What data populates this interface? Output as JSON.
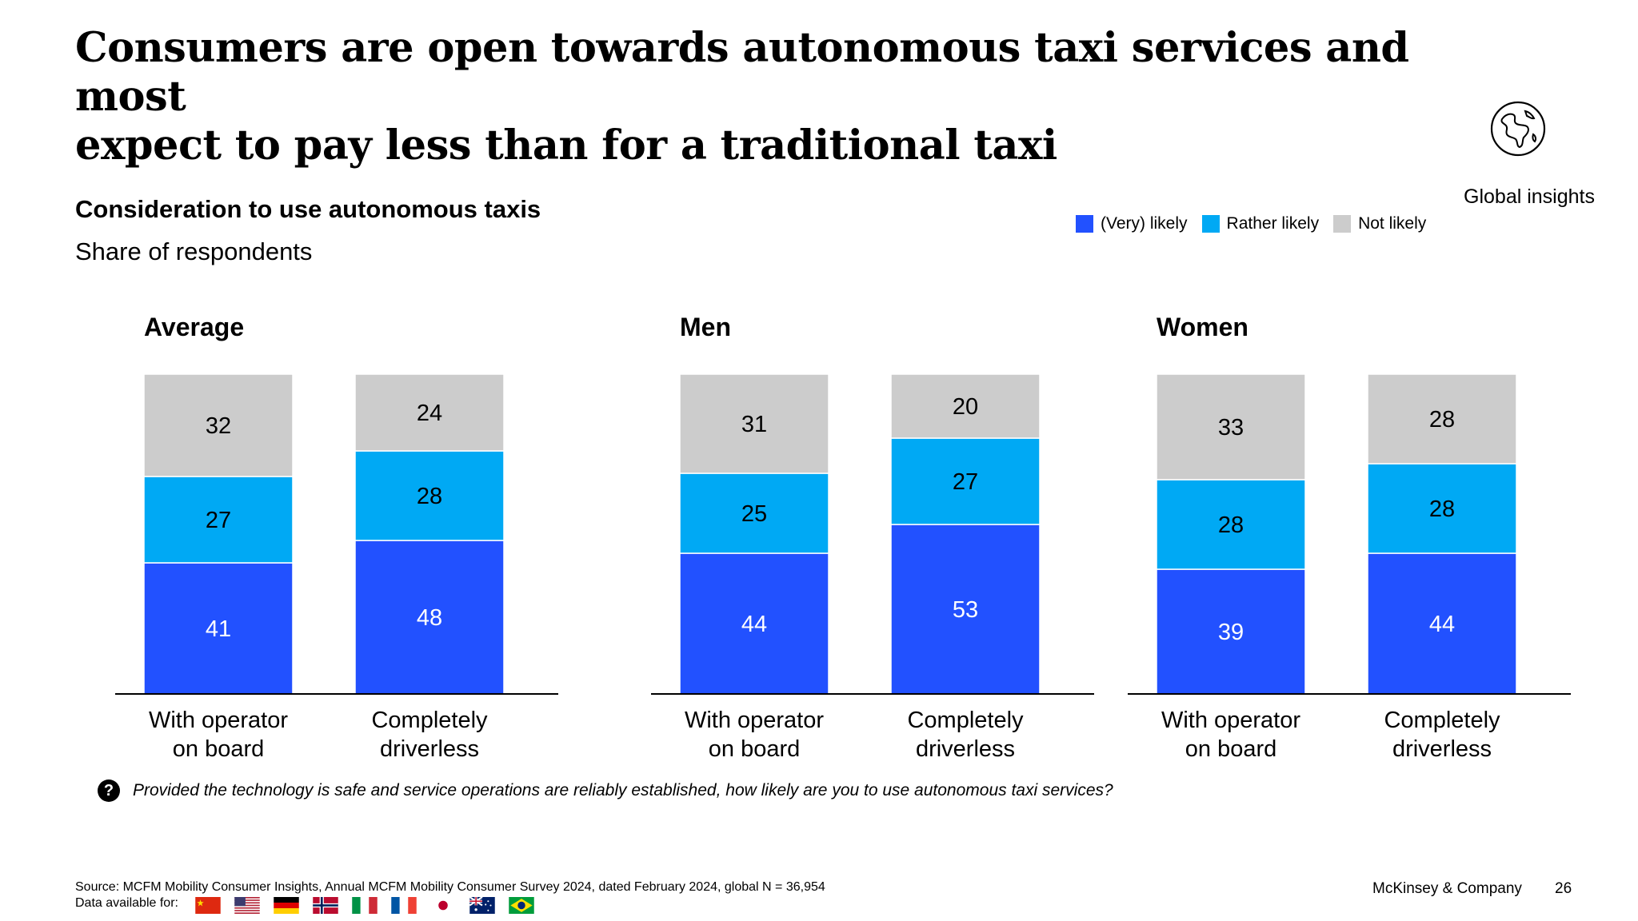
{
  "header": {
    "title_line1": "Consumers are open towards autonomous taxi services and most",
    "title_line2": "expect to pay less than for a traditional taxi",
    "global_label": "Global insights",
    "globe_icon": "globe-icon"
  },
  "chart_data": {
    "type": "bar",
    "stacked": true,
    "title": "Consideration to use autonomous taxis",
    "subtitle": "Share of respondents",
    "categories": [
      "With operator on board",
      "Completely driverless"
    ],
    "category_lines": [
      [
        "With operator",
        "on board"
      ],
      [
        "Completely",
        "driverless"
      ]
    ],
    "ylim": [
      0,
      100
    ],
    "grid": false,
    "legend_position": "top-right",
    "legend": [
      "(Very) likely",
      "Rather likely",
      "Not likely"
    ],
    "colors": [
      "#2251ff",
      "#00a9f4",
      "#cccccc"
    ],
    "label_colors": [
      "#ffffff",
      "#000000",
      "#000000"
    ],
    "panels": [
      {
        "name": "Average",
        "series": [
          {
            "name": "(Very) likely",
            "values": [
              41,
              48
            ]
          },
          {
            "name": "Rather likely",
            "values": [
              27,
              28
            ]
          },
          {
            "name": "Not likely",
            "values": [
              32,
              24
            ]
          }
        ]
      },
      {
        "name": "Men",
        "series": [
          {
            "name": "(Very) likely",
            "values": [
              44,
              53
            ]
          },
          {
            "name": "Rather likely",
            "values": [
              25,
              27
            ]
          },
          {
            "name": "Not likely",
            "values": [
              31,
              20
            ]
          }
        ]
      },
      {
        "name": "Women",
        "series": [
          {
            "name": "(Very) likely",
            "values": [
              39,
              44
            ]
          },
          {
            "name": "Rather likely",
            "values": [
              28,
              28
            ]
          },
          {
            "name": "Not likely",
            "values": [
              33,
              28
            ]
          }
        ]
      }
    ]
  },
  "question": {
    "icon": "question-icon",
    "text": "Provided the technology is safe and service operations are reliably established, how likely are you to use autonomous taxi services?"
  },
  "footer": {
    "source": "Source: MCFM Mobility Consumer Insights, Annual MCFM Mobility Consumer Survey 2024, dated February 2024, global N = 36,954",
    "data_available": "Data available for:",
    "flags": [
      "china-flag-icon",
      "usa-flag-icon",
      "germany-flag-icon",
      "norway-flag-icon",
      "italy-flag-icon",
      "france-flag-icon",
      "japan-flag-icon",
      "australia-flag-icon",
      "brazil-flag-icon"
    ],
    "brand": "McKinsey & Company",
    "page_number": "26"
  }
}
